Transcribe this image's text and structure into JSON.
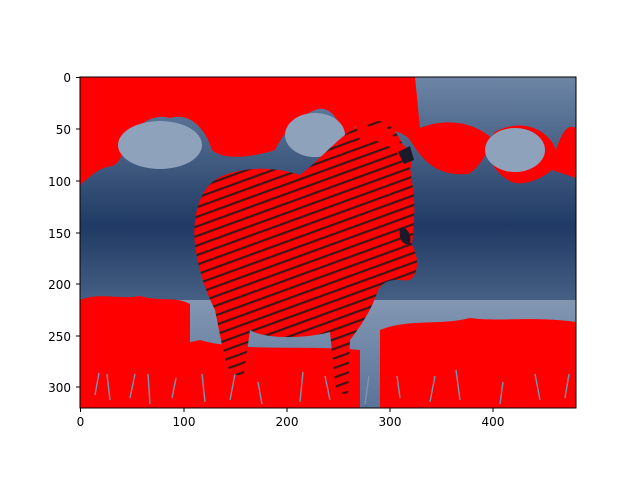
{
  "figure": {
    "background": "#ffffff",
    "x_ticks": [
      "0",
      "100",
      "200",
      "300",
      "400"
    ],
    "y_ticks": [
      "0",
      "50",
      "100",
      "150",
      "200",
      "250",
      "300"
    ],
    "x_range": [
      0,
      480
    ],
    "y_range": [
      0,
      320
    ],
    "y_axis_inverted": true
  },
  "image": {
    "subject": "zebra standing in grassland, color-thresholded overlay",
    "colors": {
      "overlay": "#ff0000",
      "sky_dark": "#1c3660",
      "sky_mid": "#4d6a90",
      "sky_light": "#8aa0b8",
      "grass": "#5b7599"
    }
  }
}
